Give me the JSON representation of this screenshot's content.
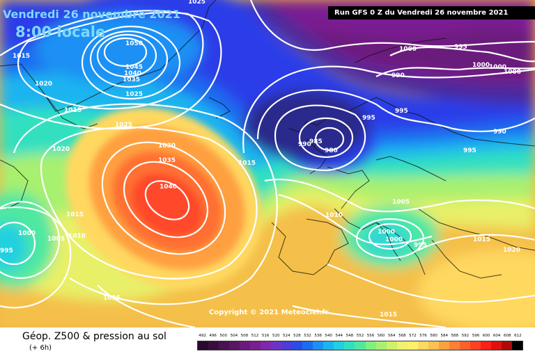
{
  "header": {
    "date_label": "Vendredi 26 novembre 2021",
    "time_label": "8:00 locale",
    "run_label": "Run GFS 0 Z du Vendredi 26 novembre 2021"
  },
  "copyright": "Copyright © 2021 Meteociel.fr",
  "legend": {
    "title": "Géop. Z500 & pression au sol",
    "subtitle": "(+ 6h)",
    "scale_values": [
      "492",
      "496",
      "500",
      "504",
      "508",
      "512",
      "516",
      "520",
      "524",
      "528",
      "532",
      "536",
      "540",
      "544",
      "548",
      "552",
      "556",
      "560",
      "564",
      "568",
      "572",
      "576",
      "580",
      "584",
      "588",
      "592",
      "596",
      "600",
      "604",
      "608",
      "612"
    ],
    "scale_colors": [
      "#2a0a2e",
      "#3a0e3c",
      "#4a1250",
      "#5a1664",
      "#6a1a7c",
      "#7a1e92",
      "#7e28ac",
      "#6c34c4",
      "#4c3cd8",
      "#2c4ce8",
      "#1c6cf0",
      "#1c90f4",
      "#1cb4f0",
      "#20d0e0",
      "#30e0c0",
      "#50e8a0",
      "#80f080",
      "#a8f070",
      "#d0f068",
      "#f0f070",
      "#fff06a",
      "#ffd860",
      "#ffc050",
      "#ffa040",
      "#ff8030",
      "#ff6028",
      "#ff4020",
      "#ff2018",
      "#e01010",
      "#b00808",
      "#000000"
    ]
  },
  "isobars": [
    "1025",
    "1050",
    "1045",
    "1040",
    "1035",
    "1025",
    "1015",
    "1020",
    "1015",
    "1025",
    "1020",
    "1030",
    "1035",
    "1040",
    "1015",
    "1010",
    "1005",
    "1000",
    "995",
    "1000",
    "995",
    "1000",
    "1000",
    "1000",
    "990",
    "995",
    "995",
    "990",
    "985",
    "980",
    "990",
    "995",
    "1015",
    "1010",
    "1005",
    "1000",
    "1000",
    "995",
    "1015",
    "1020",
    "1015",
    "1015"
  ]
}
